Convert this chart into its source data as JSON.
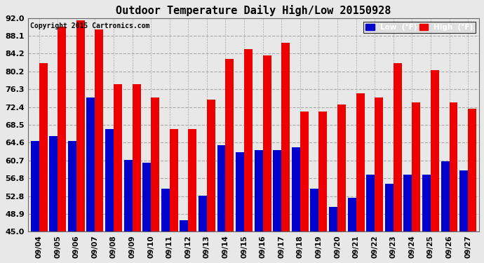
{
  "title": "Outdoor Temperature Daily High/Low 20150928",
  "copyright": "Copyright 2015 Cartronics.com",
  "legend_low": "Low  (°F)",
  "legend_high": "High  (°F)",
  "low_color": "#0000cc",
  "high_color": "#ee0000",
  "background_color": "#e8e8e8",
  "plot_bg_color": "#e8e8e8",
  "grid_color": "#aaaaaa",
  "ylim": [
    45.0,
    92.0
  ],
  "yticks": [
    45.0,
    48.9,
    52.8,
    56.8,
    60.7,
    64.6,
    68.5,
    72.4,
    76.3,
    80.2,
    84.2,
    88.1,
    92.0
  ],
  "dates": [
    "09/04",
    "09/05",
    "09/06",
    "09/07",
    "09/08",
    "09/09",
    "09/10",
    "09/11",
    "09/12",
    "09/13",
    "09/14",
    "09/15",
    "09/16",
    "09/17",
    "09/18",
    "09/19",
    "09/20",
    "09/21",
    "09/22",
    "09/23",
    "09/24",
    "09/25",
    "09/26",
    "09/27"
  ],
  "highs": [
    82.0,
    90.0,
    91.5,
    89.5,
    77.5,
    77.5,
    74.5,
    67.5,
    67.5,
    74.0,
    83.0,
    85.2,
    83.8,
    86.5,
    71.5,
    71.5,
    73.0,
    75.5,
    74.5,
    82.0,
    73.5,
    80.5,
    73.5,
    72.0
  ],
  "lows": [
    65.0,
    66.0,
    65.0,
    74.5,
    67.5,
    60.8,
    60.2,
    54.5,
    47.5,
    53.0,
    64.0,
    62.5,
    63.0,
    63.0,
    63.5,
    54.5,
    50.5,
    52.5,
    57.5,
    55.5,
    57.5,
    57.5,
    60.5,
    58.5
  ]
}
